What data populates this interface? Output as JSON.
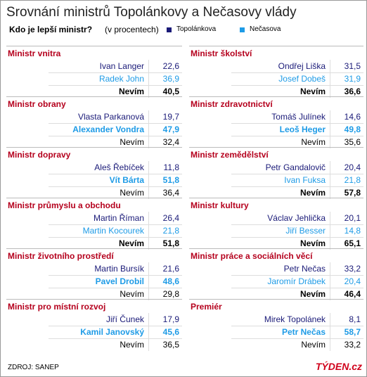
{
  "header": {
    "title": "Srovnání ministrů Topolánkovy a Nečasovy vlády",
    "subtitle": "Kdo je lepší ministr?",
    "subtitle_note": "(v procentech)",
    "legend": [
      {
        "label": "Topolánkova",
        "color": "#1a1a78"
      },
      {
        "label": "Nečasova",
        "color": "#1e9be6"
      }
    ]
  },
  "columns": [
    {
      "sections": [
        {
          "title": "Ministr vnitra",
          "rows": [
            {
              "name": "Ivan Langer",
              "value": "22,6",
              "color": "#1a1a78",
              "bold": false
            },
            {
              "name": "Radek John",
              "value": "36,9",
              "color": "#1e9be6",
              "bold": false
            },
            {
              "name": "Nevím",
              "value": "40,5",
              "color": "#000000",
              "bold": true
            }
          ]
        },
        {
          "title": "Ministr obrany",
          "rows": [
            {
              "name": "Vlasta Parkanová",
              "value": "19,7",
              "color": "#1a1a78",
              "bold": false
            },
            {
              "name": "Alexander Vondra",
              "value": "47,9",
              "color": "#1e9be6",
              "bold": true
            },
            {
              "name": "Nevím",
              "value": "32,4",
              "color": "#000000",
              "bold": false
            }
          ]
        },
        {
          "title": "Ministr dopravy",
          "rows": [
            {
              "name": "Aleš Řebíček",
              "value": "11,8",
              "color": "#1a1a78",
              "bold": false
            },
            {
              "name": "Vít Bárta",
              "value": "51,8",
              "color": "#1e9be6",
              "bold": true
            },
            {
              "name": "Nevím",
              "value": "36,4",
              "color": "#000000",
              "bold": false
            }
          ]
        },
        {
          "title": "Ministr průmyslu a obchodu",
          "rows": [
            {
              "name": "Martin Říman",
              "value": "26,4",
              "color": "#1a1a78",
              "bold": false
            },
            {
              "name": "Martin Kocourek",
              "value": "21,8",
              "color": "#1e9be6",
              "bold": false
            },
            {
              "name": "Nevím",
              "value": "51,8",
              "color": "#000000",
              "bold": true
            }
          ]
        },
        {
          "title": "Ministr životního prostředí",
          "rows": [
            {
              "name": "Martin Bursík",
              "value": "21,6",
              "color": "#1a1a78",
              "bold": false
            },
            {
              "name": "Pavel Drobil",
              "value": "48,6",
              "color": "#1e9be6",
              "bold": true
            },
            {
              "name": "Nevím",
              "value": "29,8",
              "color": "#000000",
              "bold": false
            }
          ]
        },
        {
          "title": "Ministr pro místní rozvoj",
          "rows": [
            {
              "name": "Jiří Čunek",
              "value": "17,9",
              "color": "#1a1a78",
              "bold": false
            },
            {
              "name": "Kamil Janovský",
              "value": "45,6",
              "color": "#1e9be6",
              "bold": true
            },
            {
              "name": "Nevím",
              "value": "36,5",
              "color": "#000000",
              "bold": false
            }
          ]
        }
      ]
    },
    {
      "sections": [
        {
          "title": "Ministr školství",
          "rows": [
            {
              "name": "Ondřej Liška",
              "value": "31,5",
              "color": "#1a1a78",
              "bold": false
            },
            {
              "name": "Josef Dobeš",
              "value": "31,9",
              "color": "#1e9be6",
              "bold": false
            },
            {
              "name": "Nevím",
              "value": "36,6",
              "color": "#000000",
              "bold": true
            }
          ]
        },
        {
          "title": "Ministr zdravotnictví",
          "rows": [
            {
              "name": "Tomáš Julínek",
              "value": "14,6",
              "color": "#1a1a78",
              "bold": false
            },
            {
              "name": "Leoš Heger",
              "value": "49,8",
              "color": "#1e9be6",
              "bold": true
            },
            {
              "name": "Nevím",
              "value": "35,6",
              "color": "#000000",
              "bold": false
            }
          ]
        },
        {
          "title": "Ministr zemědělství",
          "rows": [
            {
              "name": "Petr Gandalovič",
              "value": "20,4",
              "color": "#1a1a78",
              "bold": false
            },
            {
              "name": "Ivan Fuksa",
              "value": "21,8",
              "color": "#1e9be6",
              "bold": false
            },
            {
              "name": "Nevím",
              "value": "57,8",
              "color": "#000000",
              "bold": true
            }
          ]
        },
        {
          "title": "Ministr kultury",
          "rows": [
            {
              "name": "Václav Jehlička",
              "value": "20,1",
              "color": "#1a1a78",
              "bold": false
            },
            {
              "name": "Jiří Besser",
              "value": "14,8",
              "color": "#1e9be6",
              "bold": false
            },
            {
              "name": "Nevím",
              "value": "65,1",
              "color": "#000000",
              "bold": true
            }
          ]
        },
        {
          "title": "Ministr práce a sociálních věcí",
          "rows": [
            {
              "name": "Petr Nečas",
              "value": "33,2",
              "color": "#1a1a78",
              "bold": false
            },
            {
              "name": "Jaromír Drábek",
              "value": "20,4",
              "color": "#1e9be6",
              "bold": false
            },
            {
              "name": "Nevím",
              "value": "46,4",
              "color": "#000000",
              "bold": true
            }
          ]
        },
        {
          "title": "Premiér",
          "rows": [
            {
              "name": "Mirek Topolánek",
              "value": "8,1",
              "color": "#1a1a78",
              "bold": false
            },
            {
              "name": "Petr Nečas",
              "value": "58,7",
              "color": "#1e9be6",
              "bold": true
            },
            {
              "name": "Nevím",
              "value": "33,2",
              "color": "#000000",
              "bold": false
            }
          ]
        }
      ]
    }
  ],
  "footer": {
    "source": "ZDROJ: SANEP",
    "logo": "TÝDEN.cz"
  }
}
